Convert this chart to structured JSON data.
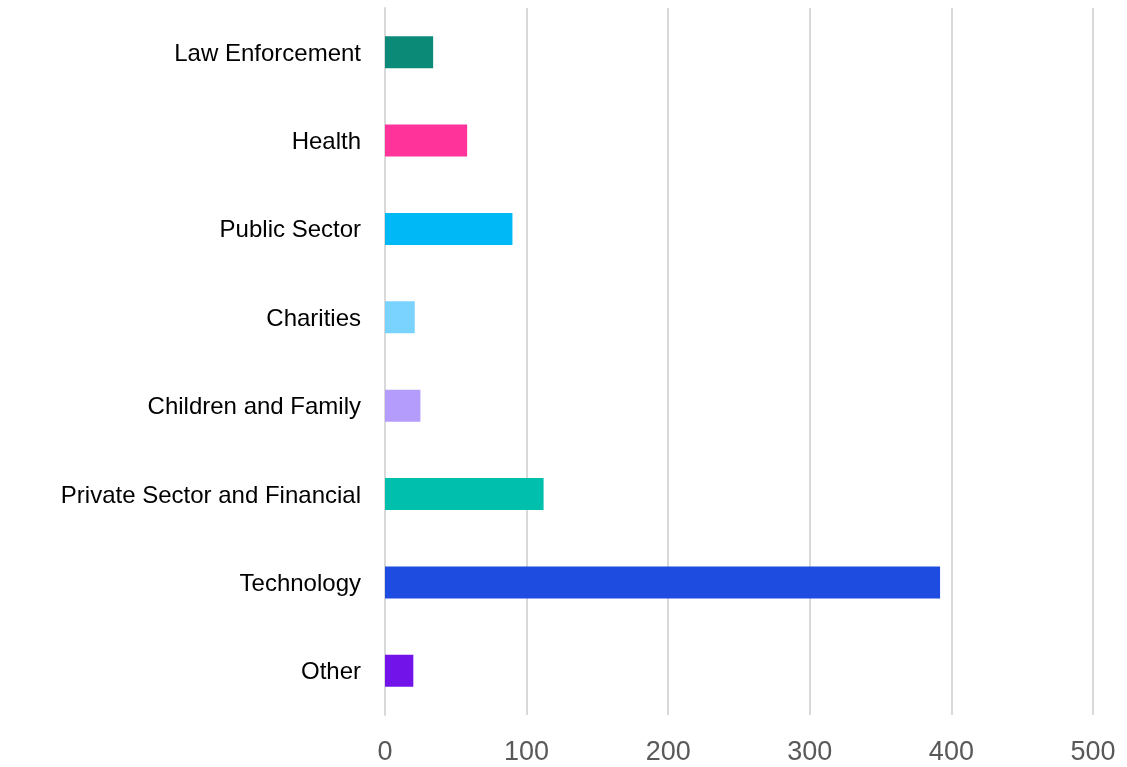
{
  "chart_data": {
    "type": "bar",
    "orientation": "horizontal",
    "categories": [
      "Law Enforcement",
      "Health",
      "Public Sector",
      "Charities",
      "Children and Family",
      "Private Sector and Financial",
      "Technology",
      "Other"
    ],
    "values": [
      34,
      58,
      90,
      21,
      25,
      112,
      392,
      20
    ],
    "colors": [
      "#0b8a78",
      "#ff3399",
      "#00b8f5",
      "#7ad3ff",
      "#b49cfc",
      "#00c0ad",
      "#1e4be0",
      "#7213ea"
    ],
    "xlim": [
      0,
      500
    ],
    "xticks": [
      0,
      100,
      200,
      300,
      400,
      500
    ],
    "grid": "x"
  }
}
